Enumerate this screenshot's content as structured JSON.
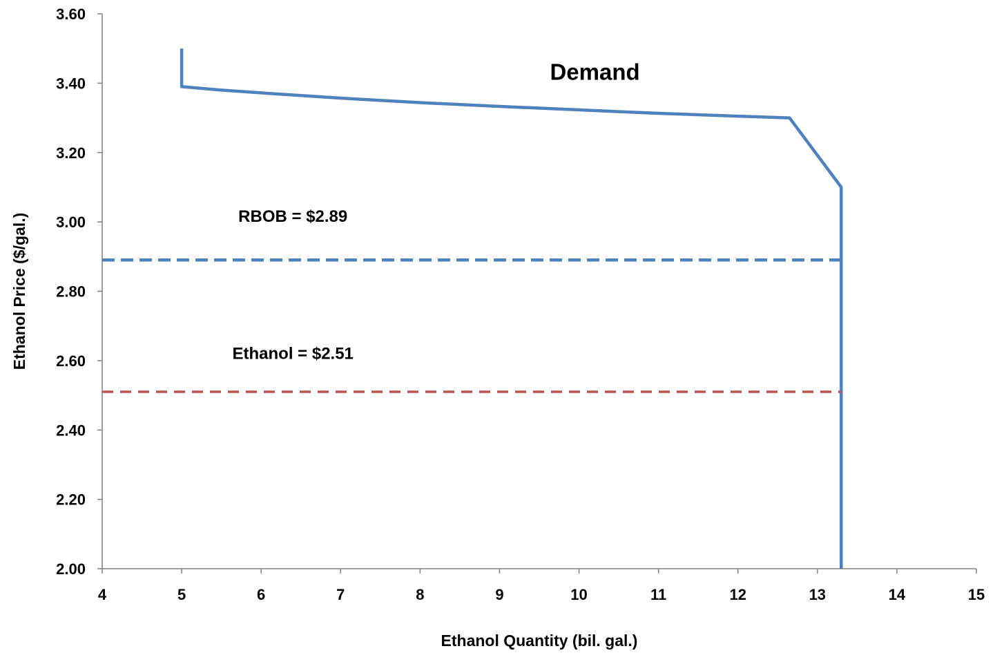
{
  "chart_data": {
    "type": "line",
    "title": "",
    "xlabel": "Ethanol Quantity (bil. gal.)",
    "ylabel": "Ethanol Price ($/gal.)",
    "xlim": [
      4,
      15
    ],
    "ylim": [
      2.0,
      3.6
    ],
    "x_ticks": [
      "4",
      "5",
      "6",
      "7",
      "8",
      "9",
      "10",
      "11",
      "12",
      "13",
      "14",
      "15"
    ],
    "y_ticks": [
      "2.00",
      "2.20",
      "2.40",
      "2.60",
      "2.80",
      "3.00",
      "3.20",
      "3.40",
      "3.60"
    ],
    "grid": false,
    "series": [
      {
        "name": "",
        "color": "#4F81BD",
        "style": "solid",
        "points": [
          [
            5.0,
            3.5
          ],
          [
            5.0,
            3.39
          ],
          [
            5.5,
            3.38
          ],
          [
            6.0,
            3.372
          ],
          [
            7.0,
            3.357
          ],
          [
            8.0,
            3.344
          ],
          [
            9.0,
            3.333
          ],
          [
            10.0,
            3.323
          ],
          [
            11.0,
            3.313
          ],
          [
            12.0,
            3.305
          ],
          [
            12.65,
            3.3
          ],
          [
            13.3,
            3.1
          ],
          [
            13.3,
            2.0
          ]
        ]
      },
      {
        "name": "",
        "color": "#4F81BD",
        "style": "dashed",
        "points": [
          [
            4.0,
            2.89
          ],
          [
            13.3,
            2.89
          ]
        ]
      },
      {
        "name": "",
        "color": "#C0504D",
        "style": "dashed",
        "points": [
          [
            4.0,
            2.51
          ],
          [
            13.3,
            2.51
          ]
        ]
      }
    ],
    "annotations": [
      {
        "text": "Demand",
        "x": 10.2,
        "y": 3.41,
        "size": "large"
      },
      {
        "text": "RBOB = $2.89",
        "x": 6.4,
        "y": 3.0,
        "size": "medium"
      },
      {
        "text": "Ethanol = $2.51",
        "x": 6.4,
        "y": 2.605,
        "size": "medium"
      }
    ]
  }
}
